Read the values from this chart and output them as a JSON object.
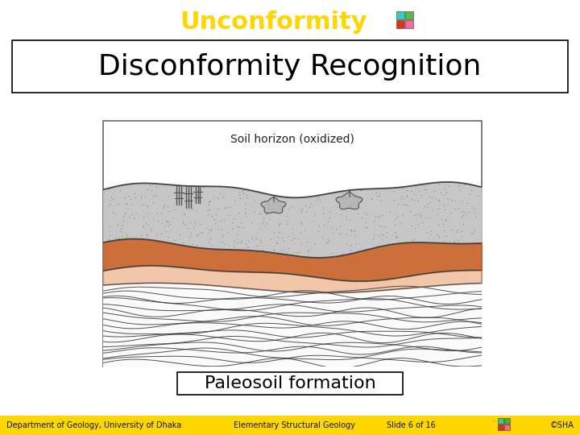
{
  "bg_color": "#ffffff",
  "title_text": "Unconformity",
  "title_color": "#FFD700",
  "title_fontsize": 22,
  "title_fontweight": "bold",
  "subtitle_text": "Disconformity Recognition",
  "subtitle_fontsize": 26,
  "subtitle_color": "#000000",
  "diagram_label": "Soil horizon (oxidized)",
  "diagram_label_fontsize": 10,
  "caption_text": "Paleosoil formation",
  "caption_fontsize": 16,
  "footer_left": "Department of Geology, University of Dhaka",
  "footer_mid": "Elementary Structural Geology",
  "footer_slide": "Slide 6 of 16",
  "footer_right": "©SHA",
  "footer_bg": "#FFD700",
  "footer_fontsize": 7,
  "upper_layer_color": "#c8c8c8",
  "soil_color": "#c8632a",
  "sediment_bg": "#f8f8f8",
  "line_color": "#333333",
  "sky_color": "#ffffff"
}
